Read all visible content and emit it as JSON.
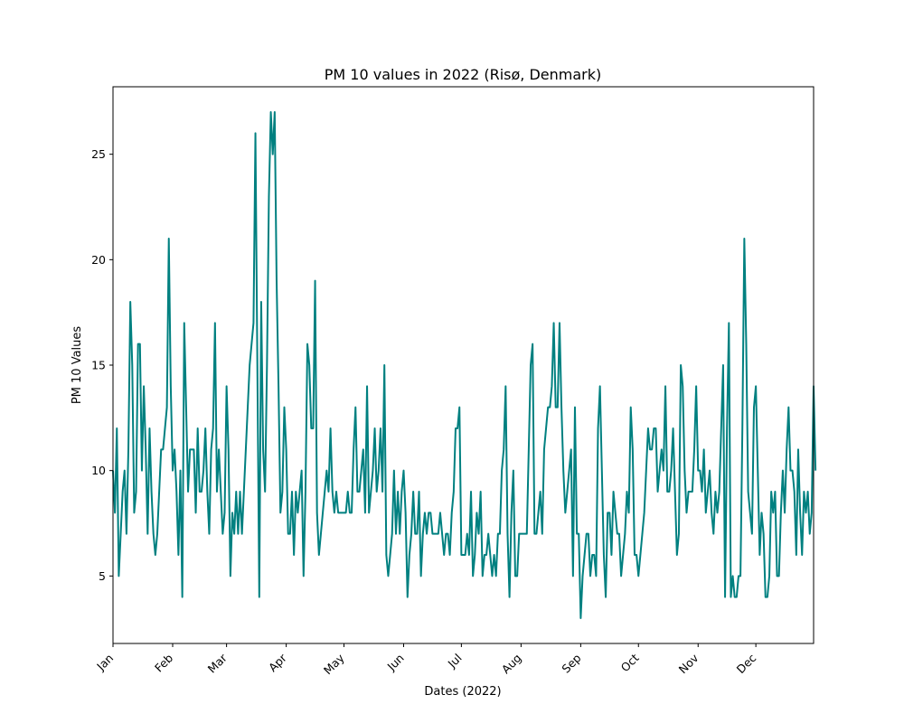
{
  "chart_data": {
    "type": "line",
    "title": "PM 10 values in 2022 (Risø, Denmark)",
    "xlabel": "Dates (2022)",
    "ylabel": "PM 10 Values",
    "x_ticks": [
      "Jan",
      "Feb",
      "Mar",
      "Apr",
      "May",
      "Jun",
      "Jul",
      "Aug",
      "Sep",
      "Oct",
      "Nov",
      "Dec"
    ],
    "y_ticks": [
      5,
      10,
      15,
      20,
      25
    ],
    "xlim": [
      "2022-01-01",
      "2022-12-31"
    ],
    "ylim": [
      1.8,
      28.2
    ],
    "grid": false,
    "color": "#008080",
    "series": [
      {
        "x_start": "2022-01-01",
        "interval": "daily",
        "values": [
          10,
          8,
          12,
          5,
          7,
          9,
          10,
          7,
          11,
          18,
          15,
          8,
          9,
          16,
          16,
          10,
          14,
          11,
          7,
          12,
          9,
          7,
          6,
          7,
          9,
          11,
          11,
          12,
          13,
          21,
          14,
          10,
          11,
          9,
          6,
          10,
          4,
          17,
          13,
          9,
          11,
          11,
          11,
          8,
          12,
          9,
          9,
          10,
          12,
          9,
          7,
          11,
          12,
          17,
          9,
          11,
          9,
          7,
          8,
          14,
          11,
          5,
          8,
          7,
          9,
          7,
          9,
          7,
          9,
          11,
          13,
          15,
          16,
          17,
          26,
          15,
          4,
          18,
          11,
          9,
          15,
          23,
          27,
          25,
          27,
          19,
          14,
          8,
          9,
          13,
          11,
          7,
          7,
          9,
          6,
          9,
          8,
          9,
          10,
          5,
          9,
          16,
          15,
          12,
          12,
          19,
          8,
          6,
          7,
          8,
          9,
          10,
          9,
          12,
          9,
          8,
          9,
          8,
          8,
          8,
          8,
          8,
          9,
          8,
          8,
          11,
          13,
          9,
          9,
          10,
          11,
          8,
          14,
          8,
          9,
          10,
          12,
          9,
          10,
          12,
          9,
          15,
          6,
          5,
          6,
          7,
          10,
          7,
          9,
          7,
          9,
          10,
          8,
          4,
          6,
          7,
          9,
          7,
          7,
          9,
          5,
          7,
          8,
          7,
          8,
          8,
          7,
          7,
          7,
          7,
          8,
          7,
          6,
          7,
          7,
          6,
          8,
          9,
          12,
          12,
          13,
          6,
          6,
          6,
          7,
          6,
          9,
          5,
          6,
          8,
          7,
          9,
          5,
          6,
          6,
          7,
          6,
          5,
          6,
          5,
          7,
          7,
          10,
          11,
          14,
          7,
          4,
          8,
          10,
          5,
          5,
          7,
          7,
          7,
          7,
          7,
          11,
          15,
          16,
          7,
          7,
          8,
          9,
          7,
          11,
          12,
          13,
          13,
          14,
          17,
          13,
          13,
          17,
          13,
          10,
          8,
          9,
          10,
          11,
          5,
          13,
          7,
          7,
          3,
          5,
          6,
          7,
          7,
          5,
          6,
          6,
          5,
          12,
          14,
          10,
          6,
          4,
          8,
          8,
          6,
          9,
          8,
          7,
          7,
          5,
          6,
          7,
          9,
          8,
          13,
          11,
          6,
          6,
          5,
          6,
          7,
          8,
          10,
          12,
          11,
          11,
          12,
          12,
          9,
          10,
          11,
          10,
          14,
          9,
          9,
          10,
          12,
          9,
          6,
          7,
          15,
          14,
          10,
          8,
          9,
          9,
          9,
          11,
          14,
          10,
          10,
          9,
          11,
          8,
          9,
          10,
          8,
          7,
          9,
          8,
          9,
          12,
          15,
          4,
          12,
          17,
          4,
          5,
          4,
          4,
          5,
          5,
          12,
          21,
          16,
          9,
          8,
          7,
          13,
          14,
          10,
          6,
          8,
          7,
          4,
          4,
          5,
          9,
          8,
          9,
          5,
          5,
          8,
          10,
          8,
          11,
          13,
          10,
          10,
          9,
          6,
          11,
          8,
          6,
          9,
          8,
          9,
          7,
          8,
          14,
          10
        ]
      }
    ]
  }
}
